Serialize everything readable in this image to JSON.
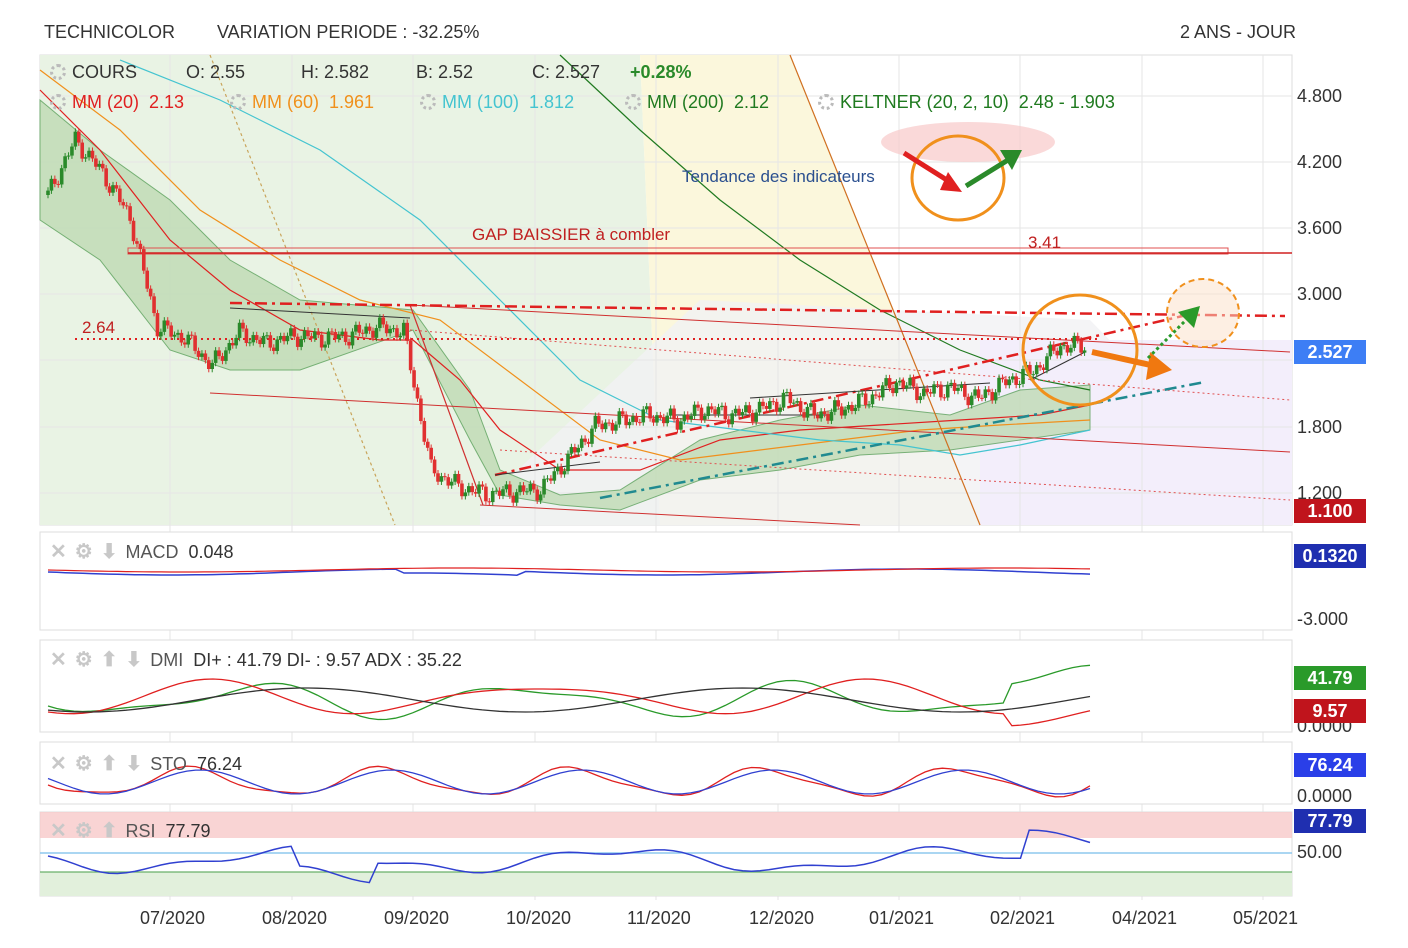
{
  "header": {
    "symbol": "TECHNICOLOR",
    "variation": "VARIATION PERIODE : -32.25%",
    "period": "2 ANS - JOUR"
  },
  "legend": {
    "cours_label": "COURS",
    "o": "O: 2.55",
    "h": "H: 2.582",
    "b": "B: 2.52",
    "c": "C: 2.527",
    "change": "+0.28%",
    "mm20": "MM (20)",
    "mm20_val": "2.13",
    "mm60": "MM (60)",
    "mm60_val": "1.961",
    "mm100": "MM (100)",
    "mm100_val": "1.812",
    "mm200": "MM (200)",
    "mm200_val": "2.12",
    "keltner": "KELTNER (20, 2, 10)",
    "keltner_val": "2.48 - 1.903"
  },
  "annotations": {
    "gap": "GAP BAISSIER à combler",
    "gap_level": "3.41",
    "level_264": "2.64",
    "trend": "Tendance des indicateurs"
  },
  "badges": {
    "price": "2.527",
    "low": "1.100",
    "macd": "0.1320",
    "diplus": "41.79",
    "diminus": "9.57",
    "sto": "76.24",
    "rsi": "77.79"
  },
  "panels": {
    "macd": {
      "label": "MACD",
      "value": "0.048"
    },
    "dmi": {
      "label": "DMI",
      "value": "DI+ : 41.79 DI- : 9.57 ADX : 35.22"
    },
    "sto": {
      "label": "STO",
      "value": "76.24"
    },
    "rsi": {
      "label": "RSI",
      "value": "77.79"
    }
  },
  "ticks": {
    "price": [
      "4.800",
      "4.200",
      "3.600",
      "3.000",
      "1.800",
      "1.200"
    ],
    "macd": [
      "-3.000"
    ],
    "dmi": [
      "0.0000"
    ],
    "sto": [
      "0.0000"
    ],
    "rsi": [
      "50.00"
    ],
    "x": [
      "07/2020",
      "08/2020",
      "09/2020",
      "10/2020",
      "11/2020",
      "12/2020",
      "01/2021",
      "02/2021",
      "04/2021",
      "05/2021"
    ]
  },
  "colors": {
    "up": "#2a8a2a",
    "down": "#e03030",
    "mm20": "#e02020",
    "mm60": "#f0901c",
    "mm100": "#44c4d0",
    "mm200": "#207a20",
    "keltner": "#1f7a1f",
    "price_badge": "#3d7ef5",
    "low_badge": "#c0141c",
    "macd_badge": "#1f2fb0",
    "diplus_badge": "#2a9a2a",
    "diminus_badge": "#c0141c",
    "sto_badge": "#2a3fe8",
    "rsi_badge": "#1f2fb0"
  },
  "chart_data": {
    "type": "line",
    "title": "TECHNICOLOR",
    "x": [
      "2020-06-15",
      "2020-06-22",
      "2020-06-29",
      "2020-07-06",
      "2020-07-13",
      "2020-07-20",
      "2020-07-27",
      "2020-08-03",
      "2020-08-10",
      "2020-08-17",
      "2020-08-24",
      "2020-08-31",
      "2020-09-07",
      "2020-09-14",
      "2020-09-21",
      "2020-09-28",
      "2020-10-05",
      "2020-10-12",
      "2020-10-19",
      "2020-10-26",
      "2020-11-02",
      "2020-11-09",
      "2020-11-16",
      "2020-11-23",
      "2020-11-30",
      "2020-12-07",
      "2020-12-14",
      "2020-12-21",
      "2020-12-28",
      "2021-01-04",
      "2021-01-11",
      "2021-01-18",
      "2021-01-25",
      "2021-02-01",
      "2021-02-08",
      "2021-02-15",
      "2021-02-22",
      "2021-03-01",
      "2021-03-05"
    ],
    "series": [
      {
        "name": "COURS",
        "values": [
          3.9,
          4.4,
          4.1,
          3.7,
          2.7,
          2.6,
          2.35,
          2.65,
          2.55,
          2.62,
          2.6,
          2.62,
          2.7,
          2.66,
          1.4,
          1.25,
          1.18,
          1.2,
          1.22,
          1.5,
          1.8,
          1.85,
          1.9,
          1.85,
          1.95,
          1.9,
          1.95,
          2.05,
          1.9,
          1.95,
          2.05,
          2.2,
          2.1,
          2.15,
          2.05,
          2.2,
          2.3,
          2.527,
          2.527
        ]
      }
    ],
    "ylim": [
      1.1,
      5.0
    ]
  }
}
